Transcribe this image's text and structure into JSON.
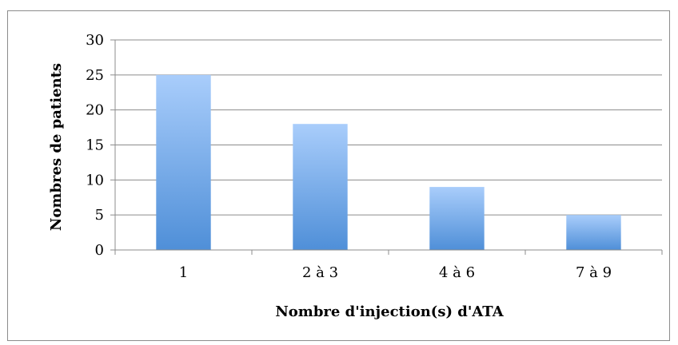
{
  "chart_data": {
    "type": "bar",
    "title": "",
    "categories": [
      "1",
      "2 à 3",
      "4 à 6",
      "7 à 9"
    ],
    "values": [
      25,
      18,
      9,
      5
    ],
    "xlabel": "Nombre d'injection(s) d'ATA",
    "ylabel": "Nombres de patients",
    "ylim": [
      0,
      30
    ],
    "yticks": [
      0,
      5,
      10,
      15,
      20,
      25,
      30
    ],
    "grid": true,
    "legend": "none",
    "colors": {
      "bar_top": "#a9cdfb",
      "bar_bottom": "#4f8fd8",
      "grid": "#8c8c8c",
      "axis": "#8c8c8c",
      "frame": "#8c8c8c"
    }
  }
}
